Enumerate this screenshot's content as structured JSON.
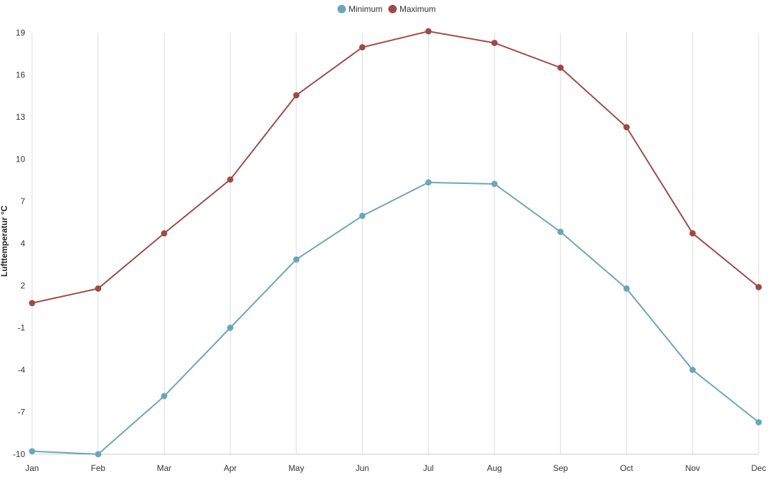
{
  "chart_data": {
    "type": "line",
    "title": "",
    "xlabel": "",
    "ylabel": "Lufttemperatur °C",
    "categories": [
      "Jan",
      "Feb",
      "Mar",
      "Apr",
      "May",
      "Jun",
      "Jul",
      "Aug",
      "Sep",
      "Oct",
      "Nov",
      "Dec"
    ],
    "y_ticks": [
      "19",
      "16",
      "13",
      "10",
      "7",
      "4",
      "2",
      "-1",
      "-4",
      "-7",
      "-10"
    ],
    "ylim": [
      -10,
      19
    ],
    "grid": "vertical",
    "legend_position": "top-center",
    "series": [
      {
        "name": "Minimum",
        "color": "#6aa6b8",
        "values": [
          -9.8,
          -10.0,
          -6.0,
          -1.3,
          3.4,
          6.4,
          8.7,
          8.6,
          5.3,
          1.4,
          -4.2,
          -7.8
        ]
      },
      {
        "name": "Maximum",
        "color": "#9e4a44",
        "values": [
          0.4,
          1.4,
          5.2,
          8.9,
          14.7,
          18.0,
          19.1,
          18.3,
          16.6,
          12.5,
          5.2,
          1.5
        ]
      }
    ]
  }
}
